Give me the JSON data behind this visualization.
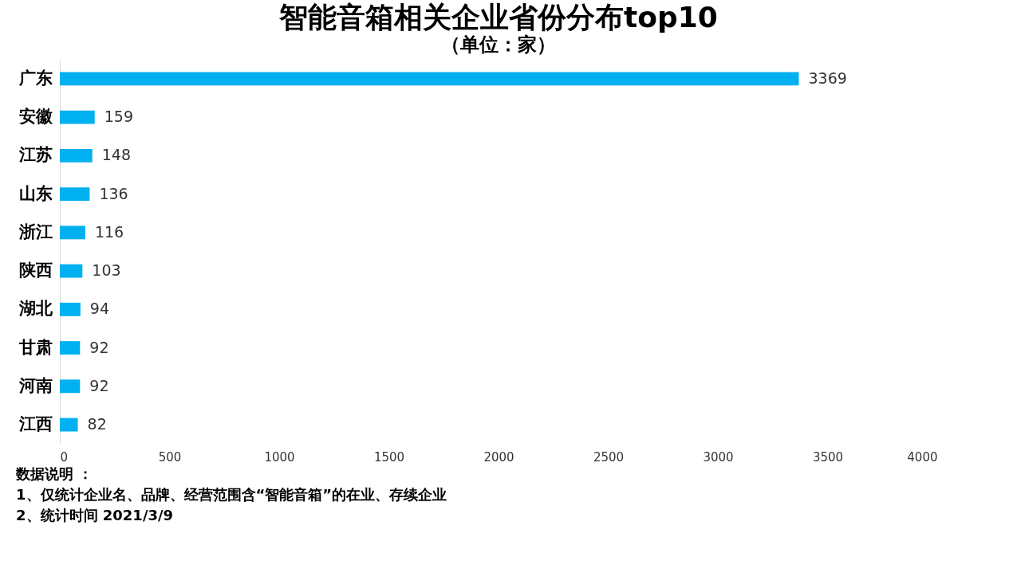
{
  "chart_data": {
    "type": "bar",
    "orientation": "horizontal",
    "title": "智能音箱相关企业省份分布top10",
    "subtitle": "（单位：家）",
    "categories": [
      "广东",
      "安徽",
      "江苏",
      "山东",
      "浙江",
      "陕西",
      "湖北",
      "甘肃",
      "河南",
      "江西"
    ],
    "values": [
      3369,
      159,
      148,
      136,
      116,
      103,
      94,
      92,
      92,
      82
    ],
    "color": "#00b0f0",
    "xlim": [
      0,
      4000
    ],
    "xticks": [
      0,
      500,
      1000,
      1500,
      2000,
      2500,
      3000,
      3500,
      4000
    ],
    "data_labels": true,
    "annotations": [
      "数据说明 ：",
      "1、仅统计企业名、品牌、经营范围含“智能音箱”的在业、存续企业",
      "2、统计时间 2021/3/9"
    ]
  }
}
